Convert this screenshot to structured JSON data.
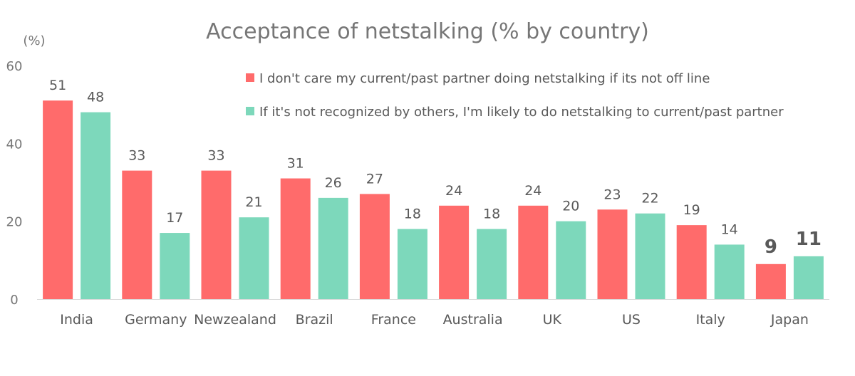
{
  "chart_data": {
    "type": "bar",
    "title": "Acceptance of netstalking (% by country)",
    "y_unit_label": "(%)",
    "ylim": [
      0,
      60
    ],
    "yticks": [
      0,
      20,
      40,
      60
    ],
    "categories": [
      "India",
      "Germany",
      "Newzealand",
      "Brazil",
      "France",
      "Australia",
      "UK",
      "US",
      "Italy",
      "Japan"
    ],
    "series": [
      {
        "name": "I don't care my current/past partner doing netstalking if its not off line",
        "color": "#ff6b6b",
        "values": [
          51,
          33,
          33,
          31,
          27,
          24,
          24,
          23,
          19,
          9
        ]
      },
      {
        "name": "If it's not recognized by others, I'm likely to do netstalking to current/past partner",
        "color": "#7dd8bb",
        "values": [
          48,
          17,
          21,
          26,
          18,
          18,
          20,
          22,
          14,
          11
        ]
      }
    ],
    "highlighted_category": "Japan",
    "grid": false,
    "legend_position": "top-right"
  }
}
